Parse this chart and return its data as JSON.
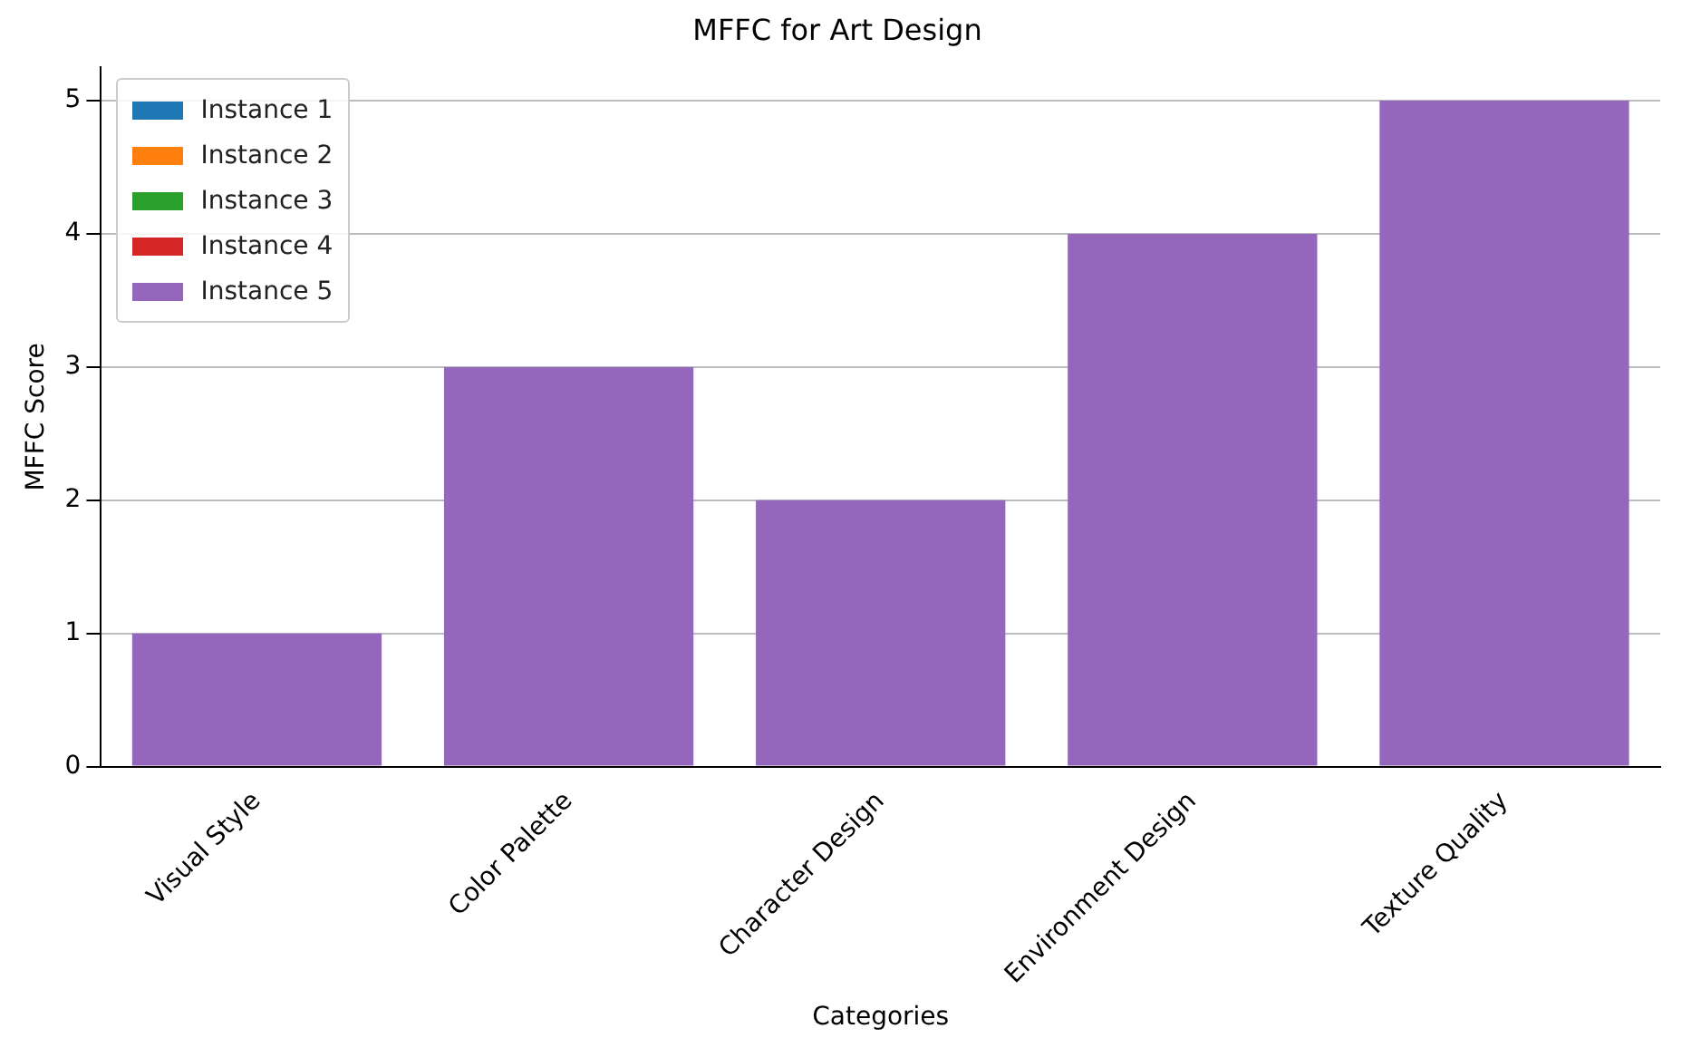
{
  "chart_data": {
    "type": "bar",
    "title": "MFFC for Art Design",
    "xlabel": "Categories",
    "ylabel": "MFFC Score",
    "categories": [
      "Visual Style",
      "Color Palette",
      "Character Design",
      "Environment Design",
      "Texture Quality"
    ],
    "series": [
      {
        "name": "Instance 1",
        "color": "#1f77b4",
        "values": [
          null,
          null,
          null,
          null,
          null
        ]
      },
      {
        "name": "Instance 2",
        "color": "#ff7f0e",
        "values": [
          null,
          null,
          null,
          null,
          null
        ]
      },
      {
        "name": "Instance 3",
        "color": "#2ca02c",
        "values": [
          null,
          null,
          null,
          null,
          null
        ]
      },
      {
        "name": "Instance 4",
        "color": "#d62728",
        "values": [
          null,
          null,
          null,
          null,
          null
        ]
      },
      {
        "name": "Instance 5",
        "color": "#9467bd",
        "values": [
          1,
          3,
          2,
          4,
          5
        ]
      }
    ],
    "ylim": [
      0,
      5.25
    ],
    "yticks": [
      0,
      1,
      2,
      3,
      4,
      5
    ],
    "grid": "y",
    "legend": "top left"
  }
}
